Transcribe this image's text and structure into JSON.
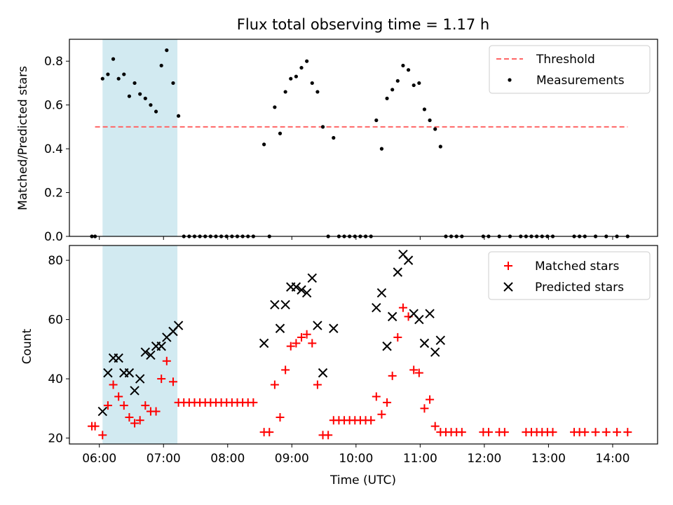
{
  "chart_data": [
    {
      "type": "scatter",
      "title": "Flux total observing time = 1.17 h",
      "xlabel": "",
      "ylabel": "Matched/Predicted stars",
      "xlim": [
        "05:32",
        "14:42"
      ],
      "ylim": [
        0,
        0.9
      ],
      "x_ticks": [
        "06:00",
        "07:00",
        "08:00",
        "09:00",
        "10:00",
        "11:00",
        "12:00",
        "13:00",
        "14:00"
      ],
      "y_ticks": [
        "0.0",
        "0.2",
        "0.4",
        "0.6",
        "0.8"
      ],
      "shaded_span": {
        "x_start": "06:03",
        "x_end": "07:13",
        "color": "#add8e6"
      },
      "legend": {
        "position": "upper right",
        "entries": [
          "Threshold",
          "Measurements"
        ]
      },
      "threshold": {
        "name": "Threshold",
        "value": 0.5,
        "x_start": "05:56",
        "x_end": "14:14",
        "color": "#ff6666"
      },
      "series": [
        {
          "name": "Measurements",
          "color": "#000000",
          "points": [
            [
              "05:53",
              0.0
            ],
            [
              "05:56",
              0.0
            ],
            [
              "06:03",
              0.72
            ],
            [
              "06:08",
              0.74
            ],
            [
              "06:13",
              0.81
            ],
            [
              "06:18",
              0.72
            ],
            [
              "06:23",
              0.74
            ],
            [
              "06:28",
              0.64
            ],
            [
              "06:33",
              0.7
            ],
            [
              "06:38",
              0.65
            ],
            [
              "06:43",
              0.63
            ],
            [
              "06:48",
              0.6
            ],
            [
              "06:53",
              0.57
            ],
            [
              "06:58",
              0.78
            ],
            [
              "07:03",
              0.85
            ],
            [
              "07:09",
              0.7
            ],
            [
              "07:14",
              0.55
            ],
            [
              "07:19",
              0.0
            ],
            [
              "07:24",
              0.0
            ],
            [
              "07:29",
              0.0
            ],
            [
              "07:34",
              0.0
            ],
            [
              "07:39",
              0.0
            ],
            [
              "07:44",
              0.0
            ],
            [
              "07:49",
              0.0
            ],
            [
              "07:54",
              0.0
            ],
            [
              "07:59",
              0.0
            ],
            [
              "08:04",
              0.0
            ],
            [
              "08:09",
              0.0
            ],
            [
              "08:14",
              0.0
            ],
            [
              "08:19",
              0.0
            ],
            [
              "08:24",
              0.0
            ],
            [
              "08:34",
              0.42
            ],
            [
              "08:39",
              0.0
            ],
            [
              "08:44",
              0.59
            ],
            [
              "08:49",
              0.47
            ],
            [
              "08:54",
              0.66
            ],
            [
              "08:59",
              0.72
            ],
            [
              "09:04",
              0.73
            ],
            [
              "09:09",
              0.77
            ],
            [
              "09:14",
              0.8
            ],
            [
              "09:19",
              0.7
            ],
            [
              "09:24",
              0.66
            ],
            [
              "09:29",
              0.5
            ],
            [
              "09:34",
              0.0
            ],
            [
              "09:39",
              0.45
            ],
            [
              "09:44",
              0.0
            ],
            [
              "09:49",
              0.0
            ],
            [
              "09:54",
              0.0
            ],
            [
              "09:59",
              0.0
            ],
            [
              "10:04",
              0.0
            ],
            [
              "10:09",
              0.0
            ],
            [
              "10:14",
              0.0
            ],
            [
              "10:19",
              0.53
            ],
            [
              "10:24",
              0.4
            ],
            [
              "10:29",
              0.63
            ],
            [
              "10:34",
              0.67
            ],
            [
              "10:39",
              0.71
            ],
            [
              "10:44",
              0.78
            ],
            [
              "10:49",
              0.76
            ],
            [
              "10:54",
              0.69
            ],
            [
              "10:59",
              0.7
            ],
            [
              "11:04",
              0.58
            ],
            [
              "11:09",
              0.53
            ],
            [
              "11:14",
              0.49
            ],
            [
              "11:19",
              0.41
            ],
            [
              "11:24",
              0.0
            ],
            [
              "11:29",
              0.0
            ],
            [
              "11:34",
              0.0
            ],
            [
              "11:39",
              0.0
            ],
            [
              "11:59",
              0.0
            ],
            [
              "12:04",
              0.0
            ],
            [
              "12:14",
              0.0
            ],
            [
              "12:24",
              0.0
            ],
            [
              "12:34",
              0.0
            ],
            [
              "12:39",
              0.0
            ],
            [
              "12:44",
              0.0
            ],
            [
              "12:49",
              0.0
            ],
            [
              "12:54",
              0.0
            ],
            [
              "12:59",
              0.0
            ],
            [
              "13:04",
              0.0
            ],
            [
              "13:24",
              0.0
            ],
            [
              "13:29",
              0.0
            ],
            [
              "13:34",
              0.0
            ],
            [
              "13:44",
              0.0
            ],
            [
              "13:54",
              0.0
            ],
            [
              "14:04",
              0.0
            ],
            [
              "14:14",
              0.0
            ]
          ]
        }
      ]
    },
    {
      "type": "scatter",
      "title": "",
      "xlabel": "Time (UTC)",
      "ylabel": "Count",
      "xlim": [
        "05:32",
        "14:42"
      ],
      "ylim": [
        18,
        85
      ],
      "x_ticks": [
        "06:00",
        "07:00",
        "08:00",
        "09:00",
        "10:00",
        "11:00",
        "12:00",
        "13:00",
        "14:00"
      ],
      "y_ticks": [
        "20",
        "40",
        "60",
        "80"
      ],
      "shaded_span": {
        "x_start": "06:03",
        "x_end": "07:13",
        "color": "#add8e6"
      },
      "legend": {
        "position": "upper right",
        "entries": [
          "Matched stars",
          "Predicted stars"
        ]
      },
      "series": [
        {
          "name": "Matched stars",
          "marker": "plus",
          "color": "#ff0000",
          "points": [
            [
              "05:53",
              24
            ],
            [
              "05:56",
              24
            ],
            [
              "06:03",
              21
            ],
            [
              "06:08",
              31
            ],
            [
              "06:13",
              38
            ],
            [
              "06:18",
              34
            ],
            [
              "06:23",
              31
            ],
            [
              "06:28",
              27
            ],
            [
              "06:33",
              25
            ],
            [
              "06:38",
              26
            ],
            [
              "06:43",
              31
            ],
            [
              "06:48",
              29
            ],
            [
              "06:53",
              29
            ],
            [
              "06:58",
              40
            ],
            [
              "07:03",
              46
            ],
            [
              "07:09",
              39
            ],
            [
              "07:14",
              32
            ],
            [
              "07:19",
              32
            ],
            [
              "07:24",
              32
            ],
            [
              "07:29",
              32
            ],
            [
              "07:34",
              32
            ],
            [
              "07:39",
              32
            ],
            [
              "07:44",
              32
            ],
            [
              "07:49",
              32
            ],
            [
              "07:54",
              32
            ],
            [
              "07:59",
              32
            ],
            [
              "08:04",
              32
            ],
            [
              "08:09",
              32
            ],
            [
              "08:14",
              32
            ],
            [
              "08:19",
              32
            ],
            [
              "08:24",
              32
            ],
            [
              "08:34",
              22
            ],
            [
              "08:39",
              22
            ],
            [
              "08:44",
              38
            ],
            [
              "08:49",
              27
            ],
            [
              "08:54",
              43
            ],
            [
              "08:59",
              51
            ],
            [
              "09:04",
              52
            ],
            [
              "09:09",
              54
            ],
            [
              "09:14",
              55
            ],
            [
              "09:19",
              52
            ],
            [
              "09:24",
              38
            ],
            [
              "09:29",
              21
            ],
            [
              "09:34",
              21
            ],
            [
              "09:39",
              26
            ],
            [
              "09:44",
              26
            ],
            [
              "09:49",
              26
            ],
            [
              "09:54",
              26
            ],
            [
              "09:59",
              26
            ],
            [
              "10:04",
              26
            ],
            [
              "10:09",
              26
            ],
            [
              "10:14",
              26
            ],
            [
              "10:19",
              34
            ],
            [
              "10:24",
              28
            ],
            [
              "10:29",
              32
            ],
            [
              "10:34",
              41
            ],
            [
              "10:39",
              54
            ],
            [
              "10:44",
              64
            ],
            [
              "10:49",
              61
            ],
            [
              "10:54",
              43
            ],
            [
              "10:59",
              42
            ],
            [
              "11:04",
              30
            ],
            [
              "11:09",
              33
            ],
            [
              "11:14",
              24
            ],
            [
              "11:19",
              22
            ],
            [
              "11:24",
              22
            ],
            [
              "11:29",
              22
            ],
            [
              "11:34",
              22
            ],
            [
              "11:39",
              22
            ],
            [
              "11:59",
              22
            ],
            [
              "12:04",
              22
            ],
            [
              "12:14",
              22
            ],
            [
              "12:19",
              22
            ],
            [
              "12:39",
              22
            ],
            [
              "12:44",
              22
            ],
            [
              "12:49",
              22
            ],
            [
              "12:54",
              22
            ],
            [
              "12:59",
              22
            ],
            [
              "13:04",
              22
            ],
            [
              "13:24",
              22
            ],
            [
              "13:29",
              22
            ],
            [
              "13:34",
              22
            ],
            [
              "13:44",
              22
            ],
            [
              "13:54",
              22
            ],
            [
              "14:04",
              22
            ],
            [
              "14:14",
              22
            ]
          ]
        },
        {
          "name": "Predicted stars",
          "marker": "x",
          "color": "#000000",
          "points": [
            [
              "06:03",
              29
            ],
            [
              "06:08",
              42
            ],
            [
              "06:13",
              47
            ],
            [
              "06:18",
              47
            ],
            [
              "06:23",
              42
            ],
            [
              "06:28",
              42
            ],
            [
              "06:33",
              36
            ],
            [
              "06:38",
              40
            ],
            [
              "06:43",
              49
            ],
            [
              "06:48",
              48
            ],
            [
              "06:53",
              51
            ],
            [
              "06:58",
              51
            ],
            [
              "07:03",
              54
            ],
            [
              "07:09",
              56
            ],
            [
              "07:14",
              58
            ],
            [
              "08:34",
              52
            ],
            [
              "08:44",
              65
            ],
            [
              "08:49",
              57
            ],
            [
              "08:54",
              65
            ],
            [
              "08:59",
              71
            ],
            [
              "09:04",
              71
            ],
            [
              "09:09",
              70
            ],
            [
              "09:14",
              69
            ],
            [
              "09:19",
              74
            ],
            [
              "09:24",
              58
            ],
            [
              "09:29",
              42
            ],
            [
              "09:39",
              57
            ],
            [
              "10:19",
              64
            ],
            [
              "10:24",
              69
            ],
            [
              "10:29",
              51
            ],
            [
              "10:34",
              61
            ],
            [
              "10:39",
              76
            ],
            [
              "10:44",
              82
            ],
            [
              "10:49",
              80
            ],
            [
              "10:54",
              62
            ],
            [
              "10:59",
              60
            ],
            [
              "11:04",
              52
            ],
            [
              "11:09",
              62
            ],
            [
              "11:14",
              49
            ],
            [
              "11:19",
              53
            ]
          ]
        }
      ]
    }
  ]
}
